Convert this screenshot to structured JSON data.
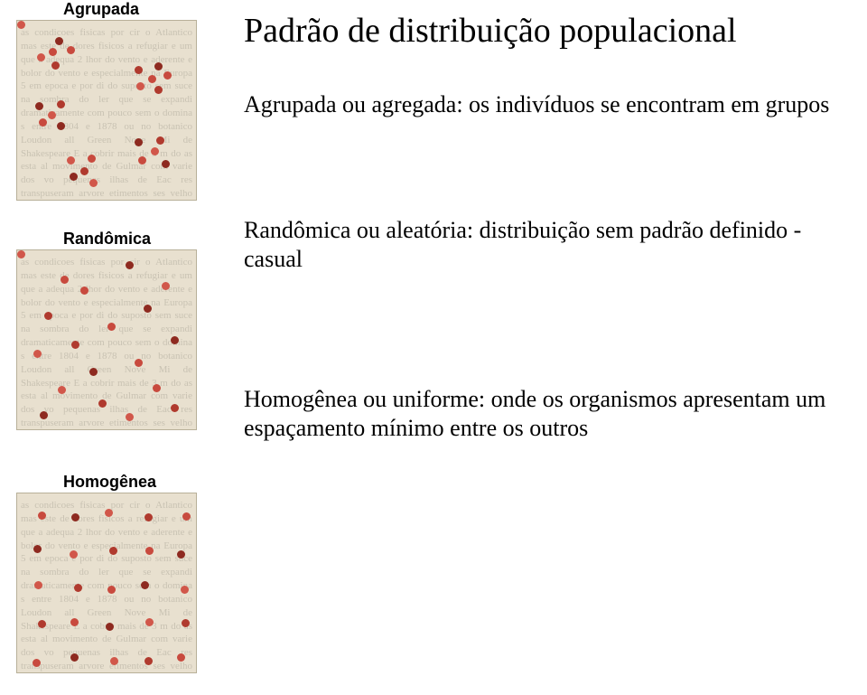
{
  "title": "Padrão de distribuição populacional",
  "labels": {
    "agrupada": "Agrupada",
    "randomica": "Randômica",
    "homogenea": "Homogênea"
  },
  "descriptions": {
    "agrupada": "Agrupada ou agregada: os indivíduos se encontram em grupos",
    "randomica": "Randômica ou aleatória: distribuição sem padrão definido - casual",
    "homogenea": "Homogênea ou uniforme: onde os organismos apresentam um espaçamento mínimo entre os outros"
  },
  "boxes": {
    "positions_top": [
      22,
      276,
      545
    ],
    "size": 200,
    "background": "#e8e0cf",
    "dot_colors": [
      "#c84a3e",
      "#8e2a20",
      "#d1574a",
      "#b03a2e"
    ]
  },
  "homogenea_grid": {
    "rows": 5,
    "cols": 5,
    "start": 20,
    "step": 40
  },
  "filler_text": "as condicoes fisicas por cir o Atlantico mas este de dores fisicos a refugiar e um que a adequa 2 lhor do vento e aderente e bolor do vento e especialmente na Europa 5 em epoca e por di do suposto sem suce na sombra do ler que se expandi dramaticamente com pouco sem o domina s entre 1804 e 1878 ou no botanico Loudon all Green Nove Mi de Shakespeare E a cobrir mais de 3 m do as esta al movimento de Gulmar com varie dos vo pequenas ilhas de Eac res transpuseram arvore etimentos ses velho pe mbustivel fazendo esp reduzia incendi o"
}
